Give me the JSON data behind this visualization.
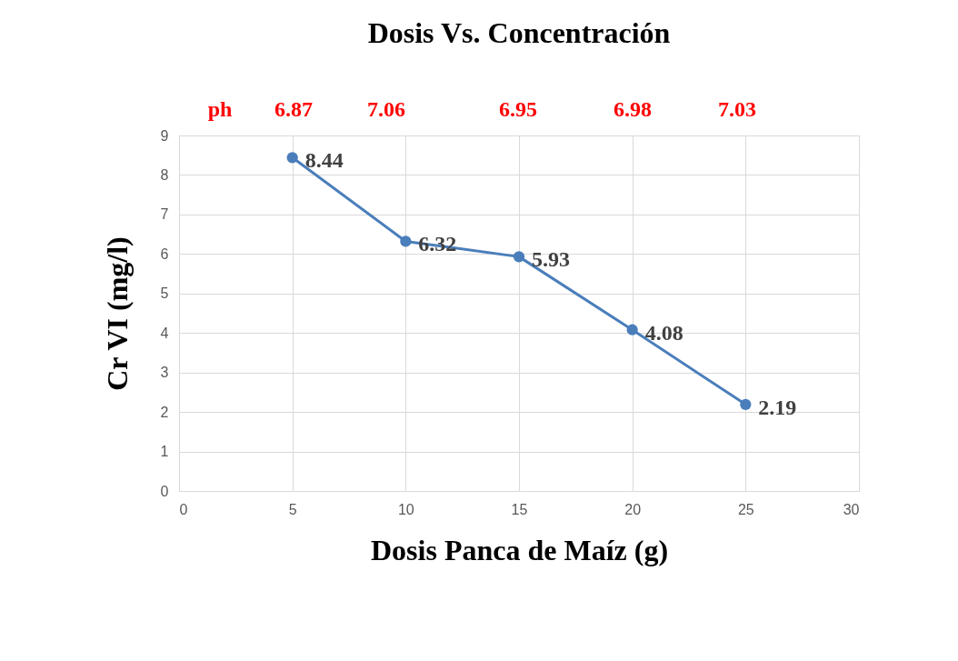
{
  "chart_data": {
    "type": "line",
    "title": "Dosis Vs. Concentración",
    "xlabel": "Dosis Panca de Maíz (g)",
    "ylabel": "Cr VI (mg/l)",
    "x": [
      5,
      10,
      15,
      20,
      25
    ],
    "series": [
      {
        "color": "#4a7ebb",
        "values": [
          8.44,
          6.32,
          5.93,
          4.08,
          2.19
        ]
      }
    ],
    "xlim": [
      0,
      30
    ],
    "xticks": [
      0,
      5,
      10,
      15,
      20,
      25,
      30
    ],
    "ylim": [
      0,
      9
    ],
    "yticks": [
      0,
      1,
      2,
      3,
      4,
      5,
      6,
      7,
      8,
      9
    ],
    "grid": true,
    "marker": "circle",
    "line_style": "solid",
    "data_labels": true,
    "annotations": [
      "ph",
      "6.87",
      "7.06",
      "6.95",
      "6.98",
      "7.03"
    ]
  }
}
